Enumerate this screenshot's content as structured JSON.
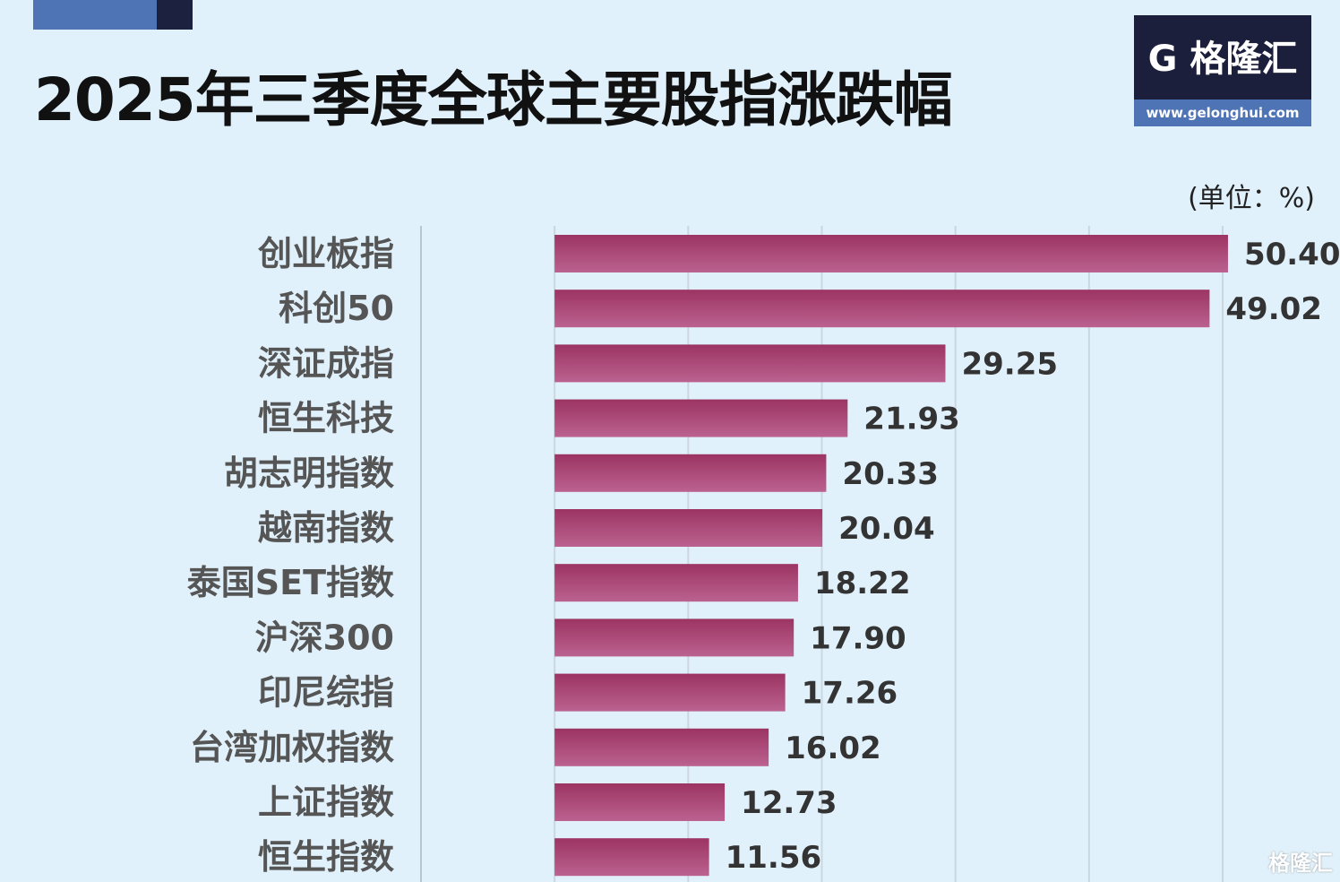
{
  "header": {
    "title": "2025年三季度全球主要股指涨跌幅"
  },
  "logo": {
    "name": "格隆汇",
    "url": "www.gelonghui.com"
  },
  "watermark": "格隆汇",
  "colors": {
    "bar": "#a8416f",
    "background": "#e1f1fb",
    "accent_blue": "#4f74b6",
    "navy": "#1c1f3c"
  },
  "chart_data": {
    "type": "bar",
    "orientation": "horizontal",
    "title": "2025年三季度全球主要股指涨跌幅",
    "unit_label": "(单位：%)",
    "categories": [
      "创业板指",
      "科创50",
      "深证成指",
      "恒生科技",
      "胡志明指数",
      "越南指数",
      "泰国SET指数",
      "沪深300",
      "印尼综指",
      "台湾加权指数",
      "上证指数",
      "恒生指数"
    ],
    "values": [
      50.4,
      49.02,
      29.25,
      21.93,
      20.33,
      20.04,
      18.22,
      17.9,
      17.26,
      16.02,
      12.73,
      11.56
    ],
    "value_labels": [
      "50.40",
      "49.02",
      "29.25",
      "21.93",
      "20.33",
      "20.04",
      "18.22",
      "17.90",
      "17.26",
      "16.02",
      "12.73",
      "11.56"
    ],
    "xlim": [
      -10,
      50
    ],
    "grid": true,
    "grid_step": 10
  }
}
